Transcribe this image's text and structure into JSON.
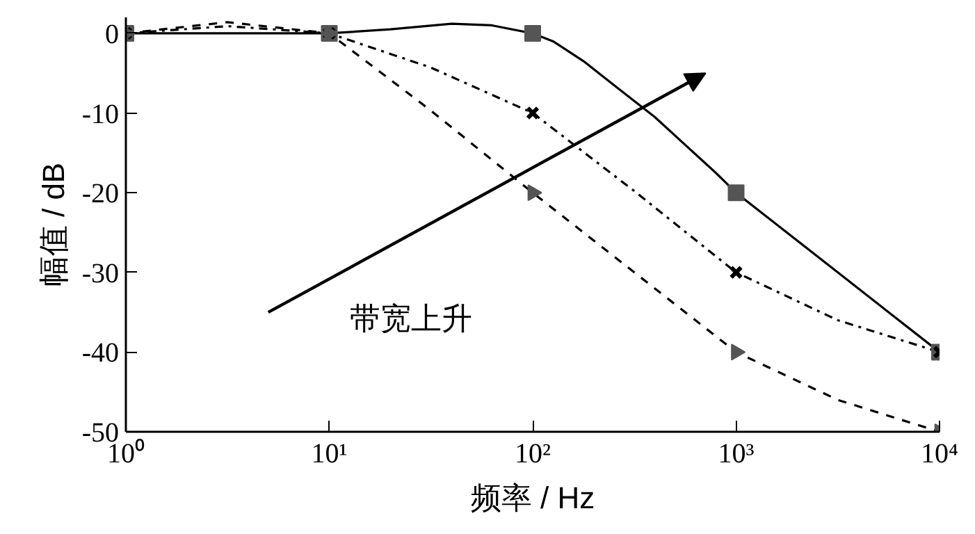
{
  "chart_data": {
    "type": "line",
    "xlabel": "频率 / Hz",
    "ylabel": "幅值 / dB",
    "log": "x",
    "series": [
      {
        "color": "#000000",
        "line_style": "solid",
        "x": [
          1,
          10,
          20,
          40,
          63,
          100,
          126,
          178,
          251,
          398,
          562,
          794,
          1000,
          3162,
          10000
        ],
        "values": [
          0,
          0,
          0.5,
          1.2,
          1,
          0,
          -1,
          -3.5,
          -6.5,
          -10.5,
          -14,
          -17.5,
          -20,
          -30,
          -40
        ]
      },
      {
        "color": "#000000",
        "line_style": "dashdot",
        "x": [
          1,
          3.16,
          10,
          31.6,
          100,
          316,
          1000,
          3162,
          10000
        ],
        "values": [
          0,
          0.9,
          0,
          -4.3,
          -10,
          -19.8,
          -30,
          -36,
          -40
        ]
      },
      {
        "color": "#000000",
        "line_style": "dashed",
        "x": [
          1,
          3.16,
          10,
          31.6,
          100,
          316,
          1000,
          3162,
          10000
        ],
        "values": [
          0,
          1.4,
          0,
          -9.7,
          -20,
          -30,
          -40,
          -46,
          -50
        ]
      },
      {
        "type": "scatter",
        "color": "#555555",
        "marker": "square",
        "x": [
          1,
          10,
          100,
          1000,
          10000
        ],
        "values": [
          0,
          0,
          0,
          -20,
          -40
        ]
      },
      {
        "type": "scatter",
        "color": "#000000",
        "marker": "cross",
        "x": [
          1,
          10,
          100,
          1000,
          10000
        ],
        "values": [
          0,
          0,
          -10,
          -30,
          -40
        ]
      },
      {
        "type": "scatter",
        "color": "#555555",
        "marker": "triangle",
        "x": [
          1,
          10,
          100,
          1000,
          10000
        ],
        "values": [
          0,
          0,
          -20,
          -40,
          -50
        ]
      }
    ],
    "xlim": [
      1,
      10000
    ],
    "ylim": [
      -50,
      2
    ],
    "xticks": [
      {
        "value": 1,
        "label": "10⁰"
      },
      {
        "value": 10,
        "label": "10¹"
      },
      {
        "value": 100,
        "label": "10²"
      },
      {
        "value": 1000,
        "label": "10³"
      },
      {
        "value": 10000,
        "label": "10⁴"
      }
    ],
    "yticks": [
      -50,
      -40,
      -30,
      -20,
      -10,
      0
    ],
    "annotations": [
      "带宽上升"
    ],
    "grid": false
  }
}
